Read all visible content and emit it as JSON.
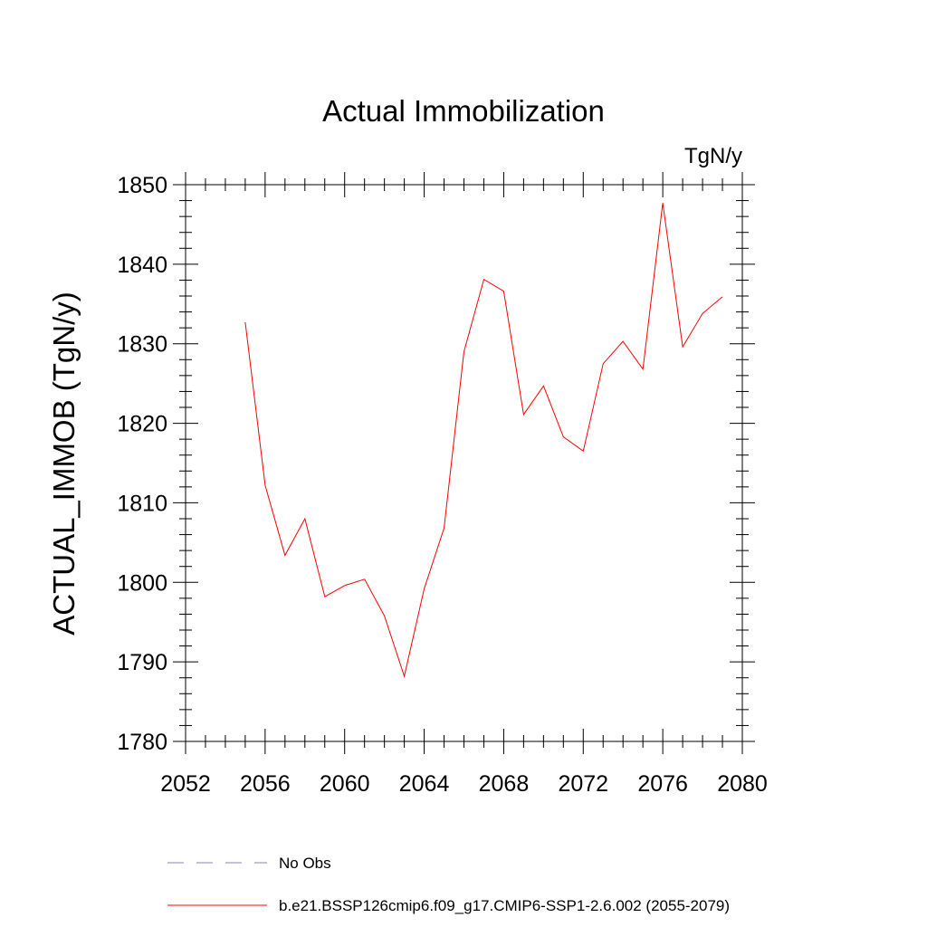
{
  "chart_data": {
    "type": "line",
    "title": "Actual Immobilization",
    "units_label": "TgN/y",
    "xlabel": "",
    "ylabel": "ACTUAL_IMMOB  (TgN/y)",
    "xlim": [
      2052,
      2080
    ],
    "ylim": [
      1780,
      1850
    ],
    "x_ticks": [
      2052,
      2056,
      2060,
      2064,
      2068,
      2072,
      2076,
      2080
    ],
    "y_ticks": [
      1780,
      1790,
      1800,
      1810,
      1820,
      1830,
      1840,
      1850
    ],
    "grid": false,
    "legend_position": "bottom",
    "series": [
      {
        "name": "b.e21.BSSP126cmip6.f09_g17.CMIP6-SSP1-2.6.002 (2055-2079)",
        "color": "#ff0000",
        "style": "solid",
        "x": [
          2055,
          2056,
          2057,
          2058,
          2059,
          2060,
          2061,
          2062,
          2063,
          2064,
          2065,
          2066,
          2067,
          2068,
          2069,
          2070,
          2071,
          2072,
          2073,
          2074,
          2075,
          2076,
          2077,
          2078,
          2079
        ],
        "values": [
          1832.7,
          1812.2,
          1803.4,
          1808.0,
          1798.2,
          1799.6,
          1800.4,
          1795.8,
          1788.2,
          1799.2,
          1806.8,
          1829.0,
          1838.1,
          1836.6,
          1821.1,
          1824.7,
          1818.3,
          1816.5,
          1827.5,
          1830.3,
          1826.8,
          1847.7,
          1829.6,
          1833.8,
          1835.9
        ]
      }
    ],
    "legend": [
      {
        "label": "No Obs",
        "color": "#8b82c4",
        "style": "dashed"
      },
      {
        "label": "b.e21.BSSP126cmip6.f09_g17.CMIP6-SSP1-2.6.002 (2055-2079)",
        "color": "#ff0000",
        "style": "solid"
      }
    ]
  }
}
